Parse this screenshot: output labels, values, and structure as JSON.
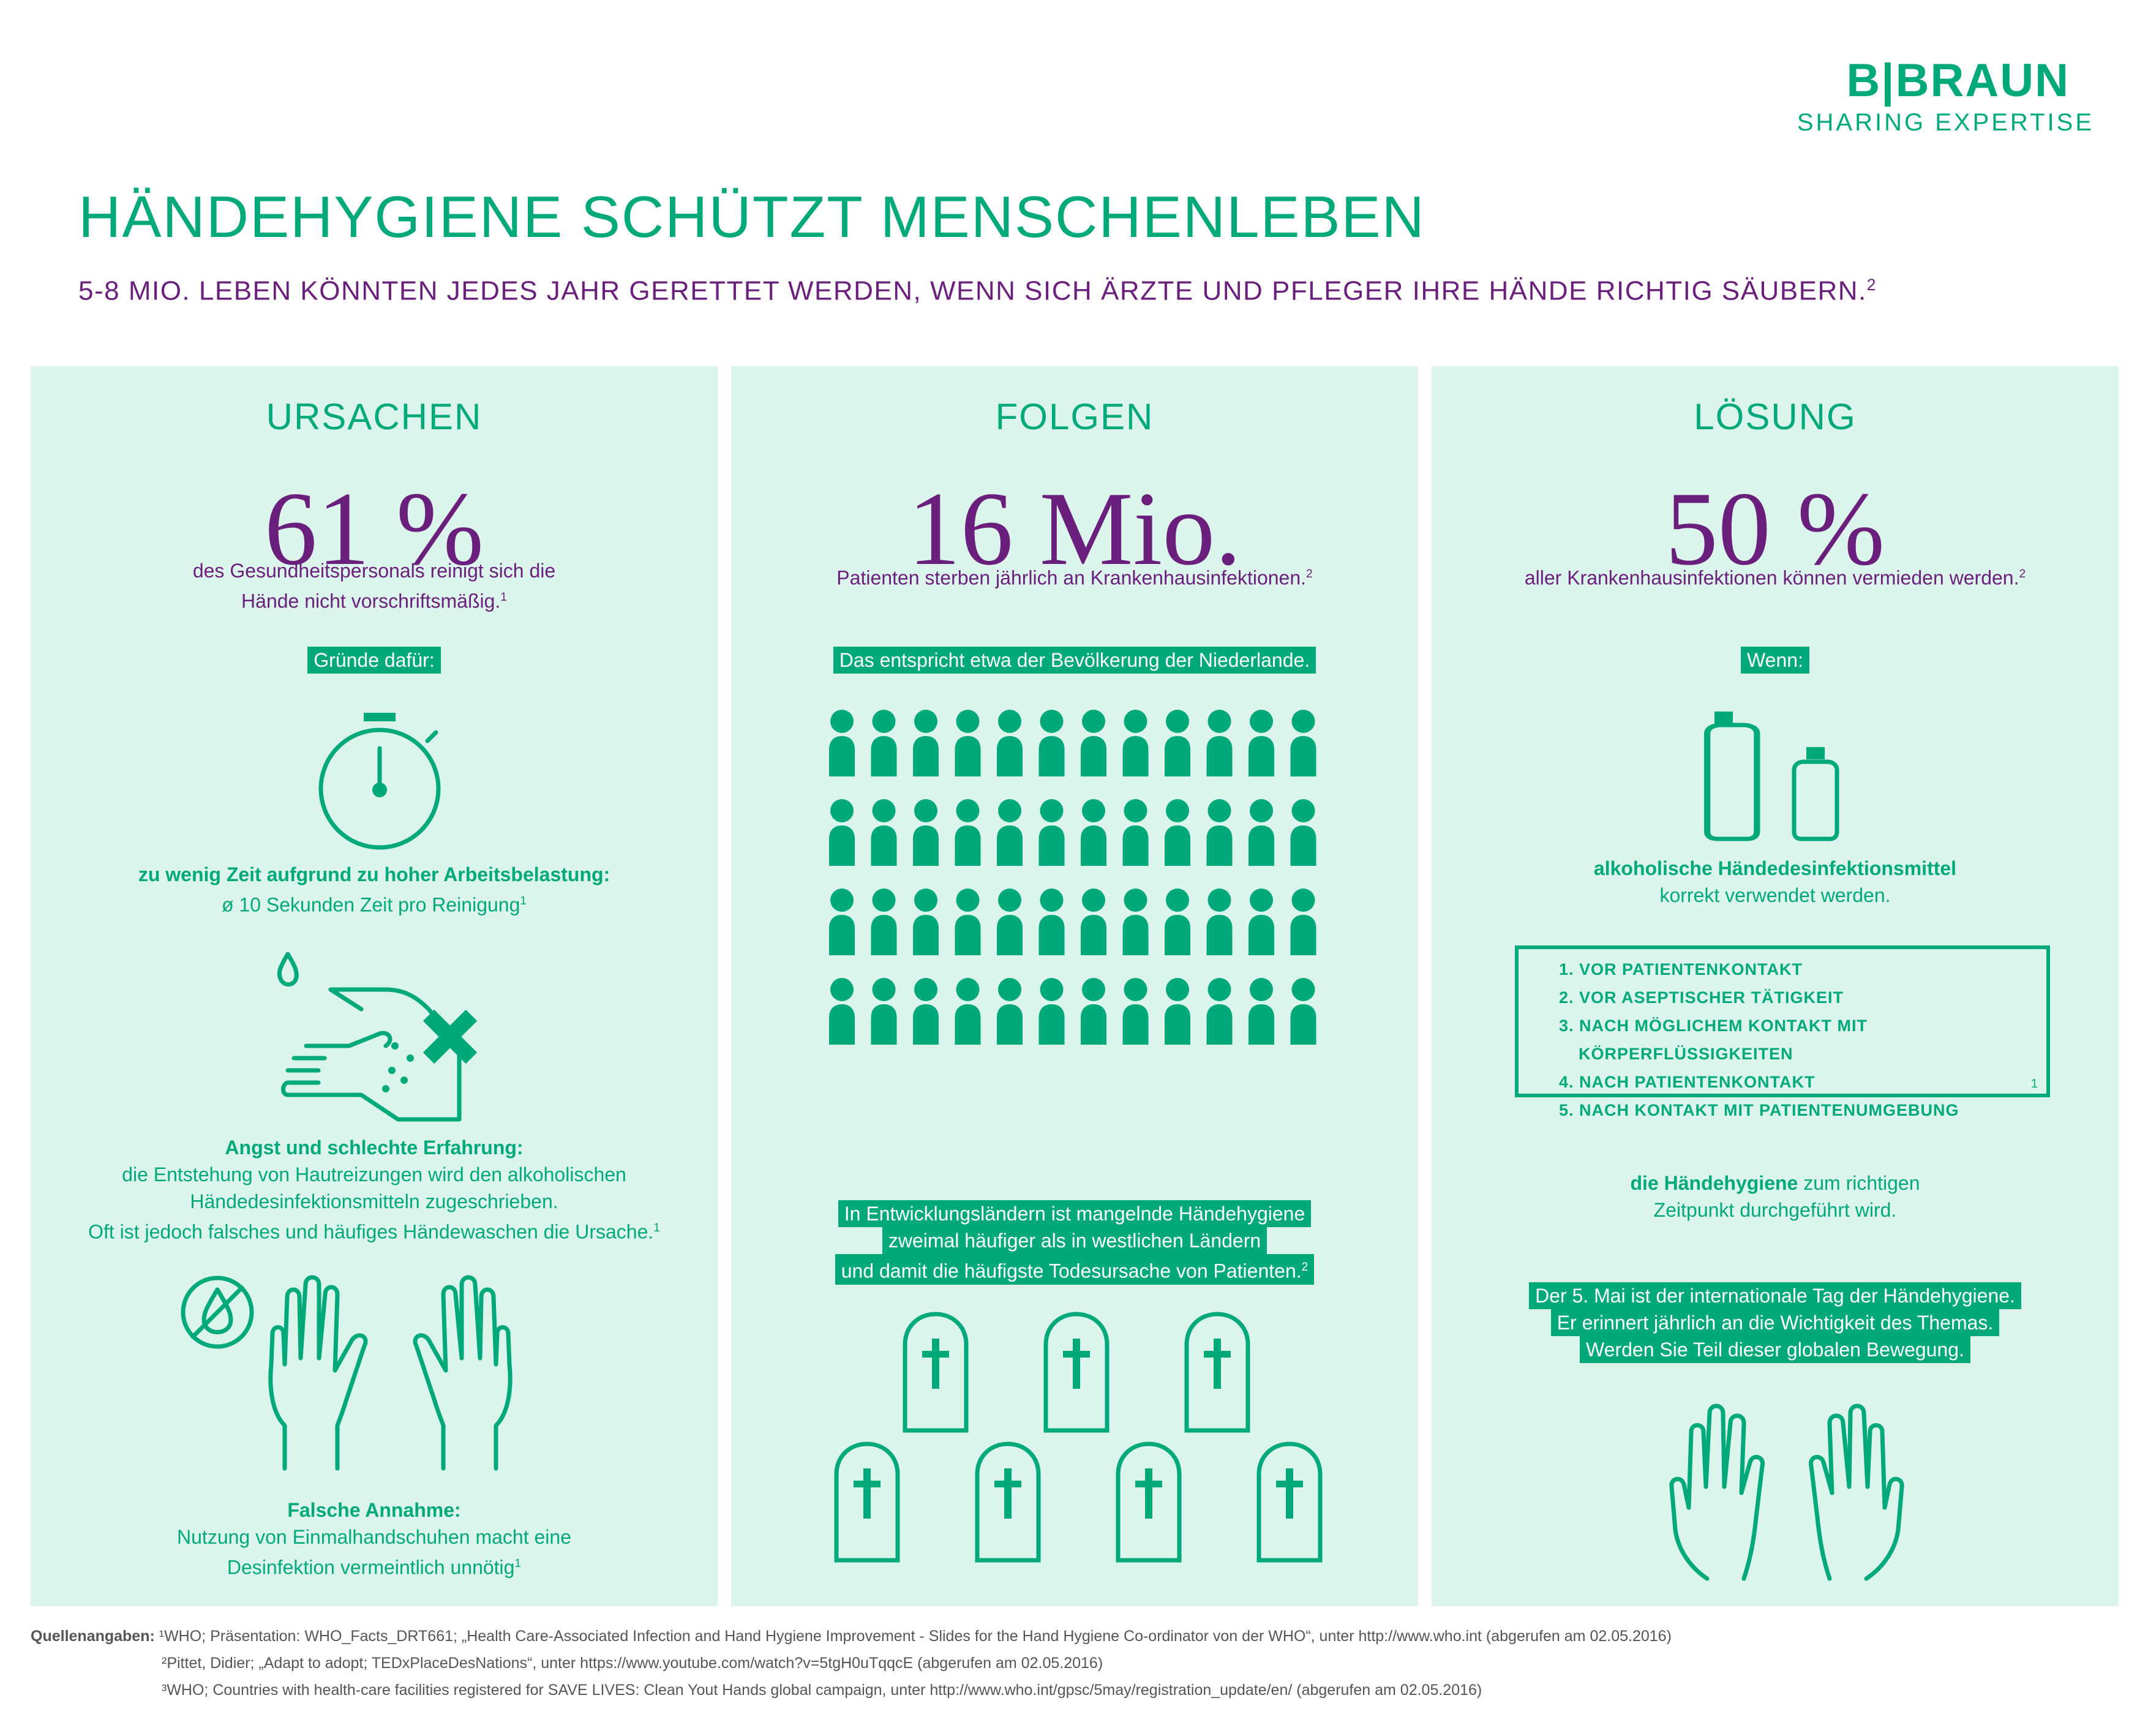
{
  "logo": {
    "brand": "B|BRAUN",
    "tagline": "SHARING EXPERTISE"
  },
  "header": {
    "title": "HÄNDEHYGIENE SCHÜTZT MENSCHENLEBEN",
    "subtitle": "5-8 MIO. LEBEN KÖNNTEN JEDES JAHR GERETTET WERDEN, WENN SICH ÄRZTE UND PFLEGER IHRE HÄNDE RICHTIG SÄUBERN.",
    "subtitle_ref": "2"
  },
  "ursachen": {
    "title": "URSACHEN",
    "stat": "61 %",
    "stat_text_1": "des Gesundheitspersonals reinigt sich die",
    "stat_text_2": "Hände nicht vorschriftsmäßig.",
    "stat_ref": "1",
    "tag": "Gründe dafür:",
    "reason1_title": "zu wenig Zeit aufgrund zu hoher Arbeitsbelastung:",
    "reason1_text": "ø 10 Sekunden Zeit pro Reinigung",
    "reason1_ref": "1",
    "reason2_title": "Angst und schlechte Erfahrung:",
    "reason2_text_1": "die Entstehung von Hautreizungen wird den alkoholischen",
    "reason2_text_2": "Händedesinfektionsmitteln zugeschrieben.",
    "reason2_text_3": "Oft ist jedoch falsches und häufiges Händewaschen die Ursache.",
    "reason2_ref": "1",
    "reason3_title": "Falsche Annahme:",
    "reason3_text_1": "Nutzung von Einmalhandschuhen macht eine",
    "reason3_text_2": "Desinfektion vermeintlich unnötig",
    "reason3_ref": "1"
  },
  "folgen": {
    "title": "FOLGEN",
    "stat": "16 Mio.",
    "stat_text": "Patienten sterben jährlich an Krankenhausinfektionen.",
    "stat_ref": "2",
    "tag": "Das entspricht etwa der Bevölkerung der Niederlande.",
    "people_rows": 4,
    "people_cols": 12,
    "tag2_line1": "In Entwicklungsländern ist mangelnde Händehygiene",
    "tag2_line2": "zweimal häufiger als in westlichen Ländern",
    "tag2_line3": "und damit die häufigste Todesursache von Patienten.",
    "tag2_ref": "2"
  },
  "loesung": {
    "title": "LÖSUNG",
    "stat": "50 %",
    "stat_text": "aller Krankenhausinfektionen können vermieden werden.",
    "stat_ref": "2",
    "tag": "Wenn:",
    "cond1_bold": "alkoholische Händedesinfektionsmittel",
    "cond1_text": "korrekt verwendet werden.",
    "moments": [
      "1. VOR PATIENTENKONTAKT",
      "2. VOR ASEPTISCHER TÄTIGKEIT",
      "3. NACH MÖGLICHEM KONTAKT MIT",
      "KÖRPERFLÜSSIGKEITEN",
      "4. NACH PATIENTENKONTAKT",
      "5. NACH KONTAKT MIT PATIENTENUMGEBUNG"
    ],
    "moments_ref": "1",
    "cond2_bold": "die Händehygiene",
    "cond2_text": " zum richtigen",
    "cond2_text_2": "Zeitpunkt durchgeführt wird.",
    "tag2_line1": "Der 5. Mai ist der internationale Tag der Händehygiene.",
    "tag2_line2": "Er erinnert jährlich an die Wichtigkeit des Themas.",
    "tag2_line3": "Werden Sie Teil dieser globalen Bewegung."
  },
  "sources": {
    "label": "Quellenangaben:",
    "s1": "¹WHO; Präsentation: WHO_Facts_DRT661; „Health Care-Associated Infection and Hand Hygiene Improvement - Slides for the Hand Hygiene Co-ordinator von der WHO“, unter http://www.who.int (abgerufen am 02.05.2016)",
    "s2": "²Pittet, Didier; „Adapt to adopt; TEDxPlaceDesNations“, unter https://www.youtube.com/watch?v=5tgH0uTqqcE (abgerufen am 02.05.2016)",
    "s3": "³WHO; Countries with health-care facilities registered for SAVE LIVES: Clean Yout Hands global campaign, unter http://www.who.int/gpsc/5may/registration_update/en/ (abgerufen am 02.05.2016)"
  },
  "colors": {
    "green": "#00A97A",
    "purple": "#6B1F7C",
    "panel": "#DBF4EC"
  }
}
